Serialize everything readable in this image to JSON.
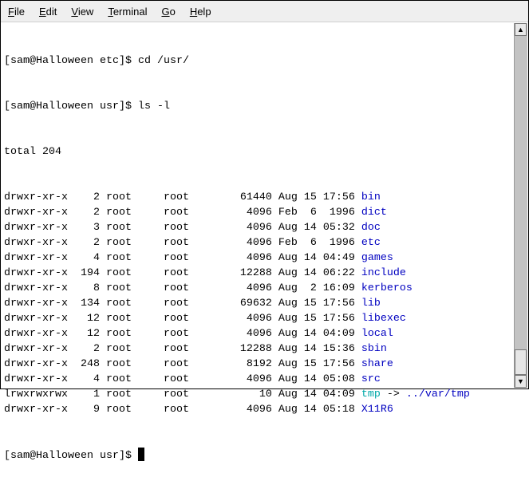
{
  "menubar": {
    "items": [
      {
        "key": "F",
        "rest": "ile"
      },
      {
        "key": "E",
        "rest": "dit"
      },
      {
        "key": "V",
        "rest": "iew"
      },
      {
        "key": "T",
        "rest": "erminal"
      },
      {
        "key": "G",
        "rest": "o"
      },
      {
        "key": "H",
        "rest": "elp"
      }
    ]
  },
  "terminal": {
    "lines": [
      "[sam@Halloween etc]$ cd /usr/",
      "[sam@Halloween usr]$ ls -l",
      "total 204"
    ],
    "entries": [
      {
        "meta": "drwxr-xr-x    2 root     root        61440 Aug 15 17:56 ",
        "name": "bin",
        "type": "dir"
      },
      {
        "meta": "drwxr-xr-x    2 root     root         4096 Feb  6  1996 ",
        "name": "dict",
        "type": "dir"
      },
      {
        "meta": "drwxr-xr-x    3 root     root         4096 Aug 14 05:32 ",
        "name": "doc",
        "type": "dir"
      },
      {
        "meta": "drwxr-xr-x    2 root     root         4096 Feb  6  1996 ",
        "name": "etc",
        "type": "dir"
      },
      {
        "meta": "drwxr-xr-x    4 root     root         4096 Aug 14 04:49 ",
        "name": "games",
        "type": "dir"
      },
      {
        "meta": "drwxr-xr-x  194 root     root        12288 Aug 14 06:22 ",
        "name": "include",
        "type": "dir"
      },
      {
        "meta": "drwxr-xr-x    8 root     root         4096 Aug  2 16:09 ",
        "name": "kerberos",
        "type": "dir"
      },
      {
        "meta": "drwxr-xr-x  134 root     root        69632 Aug 15 17:56 ",
        "name": "lib",
        "type": "dir"
      },
      {
        "meta": "drwxr-xr-x   12 root     root         4096 Aug 15 17:56 ",
        "name": "libexec",
        "type": "dir"
      },
      {
        "meta": "drwxr-xr-x   12 root     root         4096 Aug 14 04:09 ",
        "name": "local",
        "type": "dir"
      },
      {
        "meta": "drwxr-xr-x    2 root     root        12288 Aug 14 15:36 ",
        "name": "sbin",
        "type": "dir"
      },
      {
        "meta": "drwxr-xr-x  248 root     root         8192 Aug 15 17:56 ",
        "name": "share",
        "type": "dir"
      },
      {
        "meta": "drwxr-xr-x    4 root     root         4096 Aug 14 05:08 ",
        "name": "src",
        "type": "dir"
      },
      {
        "meta": "lrwxrwxrwx    1 root     root           10 Aug 14 04:09 ",
        "name": "tmp",
        "type": "link",
        "arrow": " -> ",
        "target": "../var/tmp"
      },
      {
        "meta": "drwxr-xr-x    9 root     root         4096 Aug 14 05:18 ",
        "name": "X11R6",
        "type": "dir"
      }
    ],
    "prompt": "[sam@Halloween usr]$ "
  },
  "colors": {
    "dir": "#0000c0",
    "link": "#00a8a8"
  }
}
